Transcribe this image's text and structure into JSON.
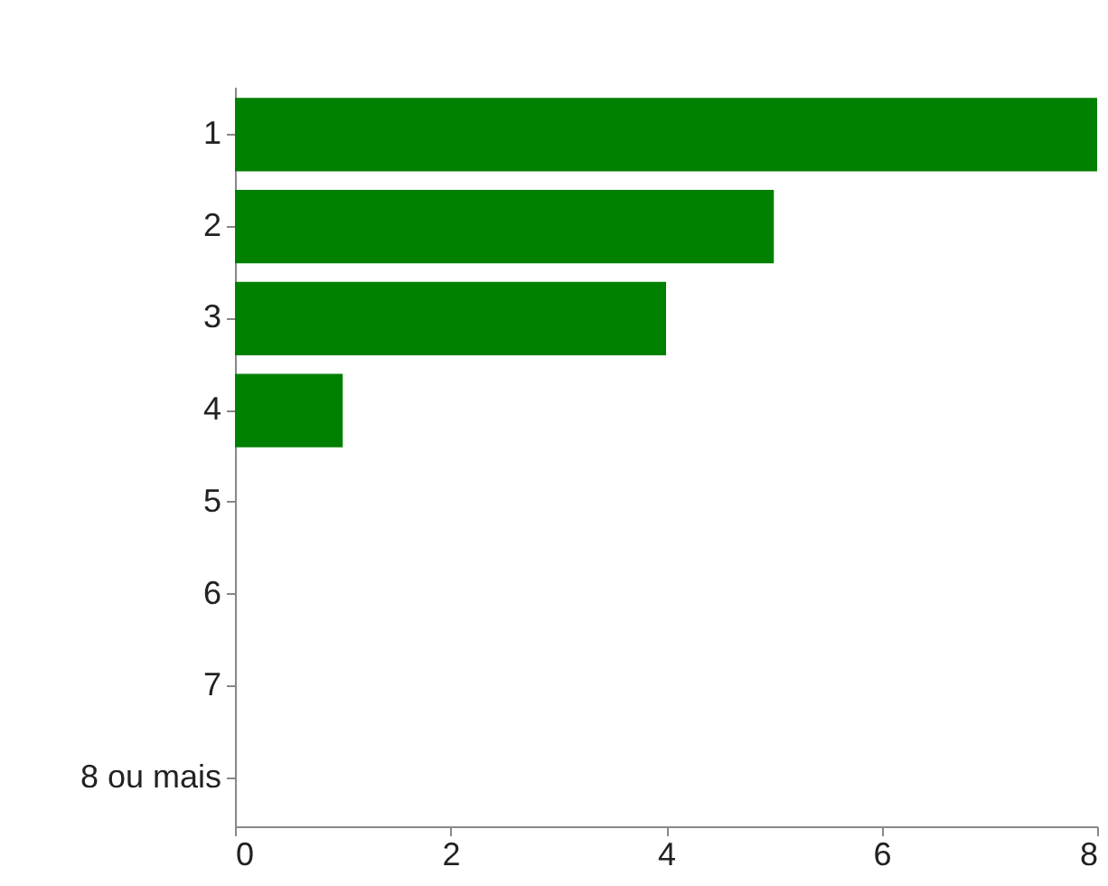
{
  "chart_data": {
    "type": "bar",
    "orientation": "horizontal",
    "categories": [
      "1",
      "2",
      "3",
      "4",
      "5",
      "6",
      "7",
      "8 ou mais"
    ],
    "values": [
      8,
      5,
      4,
      1,
      0,
      0,
      0,
      0
    ],
    "color": "#008000",
    "xlim": [
      0,
      8
    ],
    "xticks": [
      0,
      2,
      4,
      6,
      8
    ],
    "grid": false
  }
}
